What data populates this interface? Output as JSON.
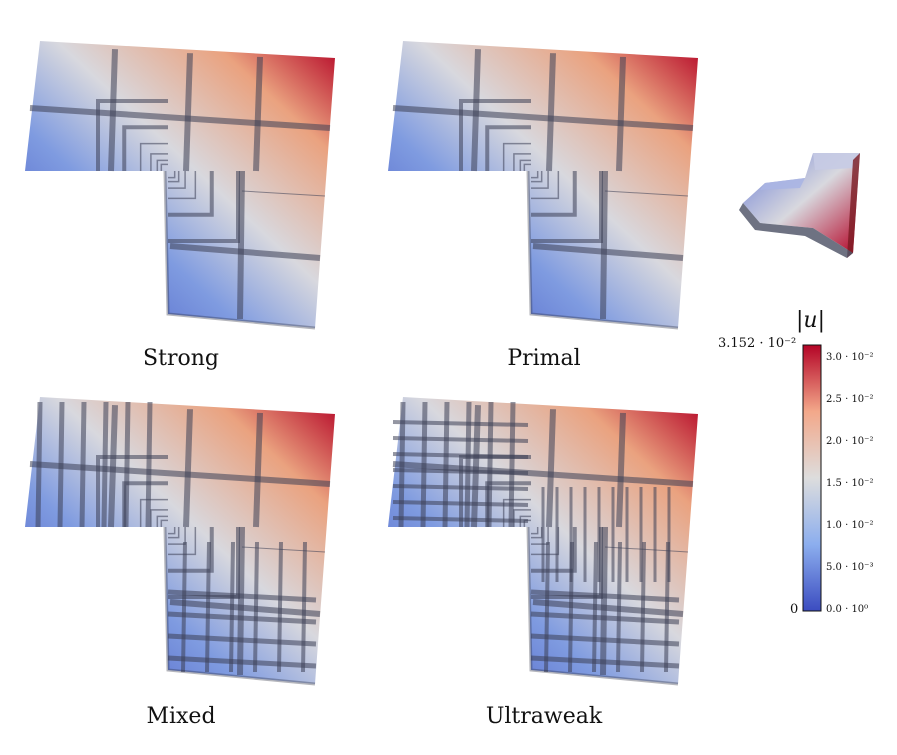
{
  "panels": [
    {
      "id": "strong",
      "label": "Strong"
    },
    {
      "id": "primal",
      "label": "Primal"
    },
    {
      "id": "mixed",
      "label": "Mixed"
    },
    {
      "id": "ultraweak",
      "label": "Ultraweak"
    }
  ],
  "colorbar": {
    "title": "|u|",
    "max_label": "3.152 · 10⁻²",
    "min_label": "0",
    "ticks": [
      "3.0 · 10⁻²",
      "2.5 · 10⁻²",
      "2.0 · 10⁻²",
      "1.5 · 10⁻²",
      "1.0 · 10⁻²",
      "5.0 · 10⁻³",
      "0.0 · 10⁰"
    ],
    "colors": {
      "low": "#3b4cc0",
      "mid": "#dddddd",
      "high": "#b40426"
    }
  }
}
